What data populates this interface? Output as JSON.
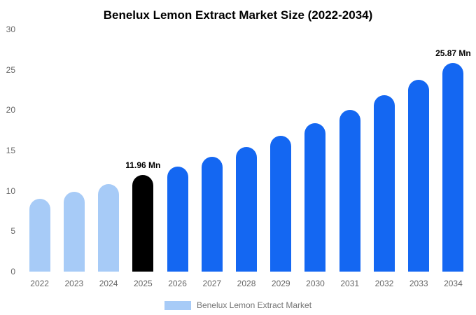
{
  "chart_data": {
    "type": "bar",
    "title": "Benelux Lemon Extract Market Size (2022-2034)",
    "categories": [
      "2022",
      "2023",
      "2024",
      "2025",
      "2026",
      "2027",
      "2028",
      "2029",
      "2030",
      "2031",
      "2032",
      "2033",
      "2034"
    ],
    "values": [
      9.0,
      9.9,
      10.85,
      11.96,
      13.03,
      14.2,
      15.47,
      16.86,
      18.37,
      20.02,
      21.81,
      23.74,
      25.87
    ],
    "bar_colors": [
      "#a7cbf7",
      "#a7cbf7",
      "#a7cbf7",
      "#000000",
      "#1467f2",
      "#1467f2",
      "#1467f2",
      "#1467f2",
      "#1467f2",
      "#1467f2",
      "#1467f2",
      "#1467f2",
      "#1467f2"
    ],
    "annotations": [
      {
        "index": 3,
        "text": "11.96 Mn"
      },
      {
        "index": 12,
        "text": "25.87 Mn"
      }
    ],
    "xlabel": "",
    "ylabel": "",
    "ylim": [
      0,
      30
    ],
    "yticks": [
      0,
      5,
      10,
      15,
      20,
      25,
      30
    ],
    "grid": false,
    "legend": {
      "position": "bottom",
      "entries": [
        {
          "label": "Benelux Lemon Extract Market",
          "color": "#a7cbf7"
        }
      ]
    }
  },
  "colors": {
    "background": "#ffffff",
    "highlight_bar": "#000000",
    "forecast_bar": "#1467f2",
    "historic_bar": "#a7cbf7",
    "axis_text": "#666666",
    "legend_text": "#757575"
  }
}
